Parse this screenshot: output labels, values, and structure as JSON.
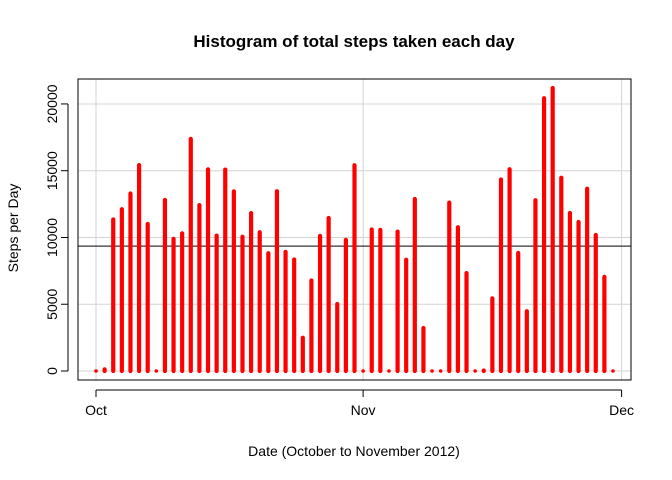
{
  "chart_data": {
    "type": "bar",
    "title": "Histogram of total steps taken each day",
    "xlabel": "Date (October to November 2012)",
    "ylabel": "Steps per Day",
    "x_tick_labels": [
      "Oct",
      "Nov",
      "Dec"
    ],
    "x_tick_dates": [
      "2012-10-01",
      "2012-11-01",
      "2012-12-01"
    ],
    "y_ticks": [
      0,
      5000,
      10000,
      15000,
      20000
    ],
    "xlim": [
      "2012-10-01",
      "2012-11-30"
    ],
    "ylim": [
      0,
      21194
    ],
    "grid": true,
    "bar_color": "#ff0000",
    "reference_line": {
      "type": "horizontal",
      "value": 9354,
      "color": "#333333"
    },
    "x": [
      "2012-10-01",
      "2012-10-02",
      "2012-10-03",
      "2012-10-04",
      "2012-10-05",
      "2012-10-06",
      "2012-10-07",
      "2012-10-08",
      "2012-10-09",
      "2012-10-10",
      "2012-10-11",
      "2012-10-12",
      "2012-10-13",
      "2012-10-14",
      "2012-10-15",
      "2012-10-16",
      "2012-10-17",
      "2012-10-18",
      "2012-10-19",
      "2012-10-20",
      "2012-10-21",
      "2012-10-22",
      "2012-10-23",
      "2012-10-24",
      "2012-10-25",
      "2012-10-26",
      "2012-10-27",
      "2012-10-28",
      "2012-10-29",
      "2012-10-30",
      "2012-10-31",
      "2012-11-01",
      "2012-11-02",
      "2012-11-03",
      "2012-11-04",
      "2012-11-05",
      "2012-11-06",
      "2012-11-07",
      "2012-11-08",
      "2012-11-09",
      "2012-11-10",
      "2012-11-11",
      "2012-11-12",
      "2012-11-13",
      "2012-11-14",
      "2012-11-15",
      "2012-11-16",
      "2012-11-17",
      "2012-11-18",
      "2012-11-19",
      "2012-11-20",
      "2012-11-21",
      "2012-11-22",
      "2012-11-23",
      "2012-11-24",
      "2012-11-25",
      "2012-11-26",
      "2012-11-27",
      "2012-11-28",
      "2012-11-29",
      "2012-11-30"
    ],
    "values": [
      0,
      126,
      11352,
      12116,
      13294,
      15420,
      11015,
      0,
      12811,
      9900,
      10304,
      17382,
      12426,
      15098,
      10139,
      15084,
      13452,
      10056,
      11829,
      10395,
      8821,
      13460,
      8918,
      8355,
      2492,
      6778,
      10119,
      11458,
      5018,
      9819,
      15414,
      0,
      10600,
      10571,
      0,
      10439,
      8334,
      12883,
      3219,
      0,
      0,
      12608,
      10765,
      7336,
      0,
      41,
      5441,
      14339,
      15110,
      8841,
      4472,
      12787,
      20427,
      21194,
      14478,
      11834,
      11162,
      13646,
      10183,
      7047,
      0
    ]
  }
}
